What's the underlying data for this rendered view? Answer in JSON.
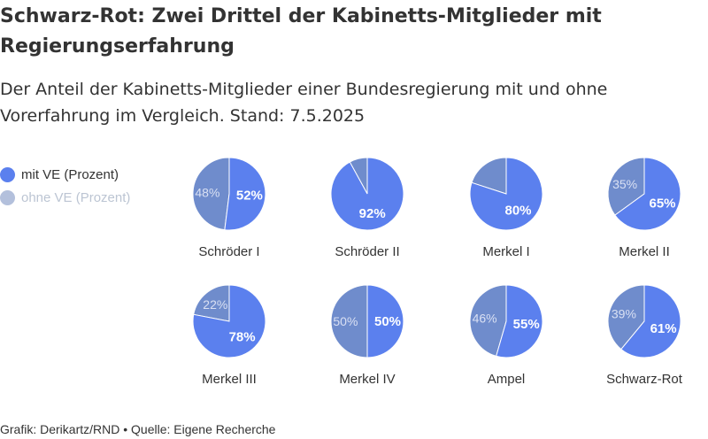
{
  "header": {
    "title": "Schwarz-Rot: Zwei Drittel der Kabinetts-Mitglieder mit Regierungserfahrung",
    "subtitle": "Der Anteil der Kabinetts-Mitglieder einer Bundesregierung mit und ohne Vorerfahrung im Vergleich. Stand: 7.5.2025"
  },
  "legend": {
    "items": [
      {
        "label": "mit VE (Prozent)",
        "color": "#5b80ee"
      },
      {
        "label": "ohne VE (Prozent)",
        "color": "#6f8ccc"
      }
    ]
  },
  "footer": {
    "text": "Grafik: Derikartz/RND • Quelle: Eigene Recherche"
  },
  "colors": {
    "mit_ve": "#5b80ee",
    "ohne_ve": "#6f8ccc",
    "legend_ohne_text": "#bcc5d3"
  },
  "chart_data": {
    "type": "pie",
    "title": "Schwarz-Rot: Zwei Drittel der Kabinetts-Mitglieder mit Regierungserfahrung",
    "series_names": [
      "mit VE (Prozent)",
      "ohne VE (Prozent)"
    ],
    "pies": [
      {
        "name": "Schröder I",
        "mit_ve": 52,
        "ohne_ve": 48,
        "mit_label": "52%",
        "ohne_label": "48%"
      },
      {
        "name": "Schröder II",
        "mit_ve": 92,
        "ohne_ve": 8,
        "mit_label": "92%",
        "ohne_label": ""
      },
      {
        "name": "Merkel I",
        "mit_ve": 80,
        "ohne_ve": 20,
        "mit_label": "80%",
        "ohne_label": ""
      },
      {
        "name": "Merkel II",
        "mit_ve": 65,
        "ohne_ve": 35,
        "mit_label": "65%",
        "ohne_label": "35%"
      },
      {
        "name": "Merkel III",
        "mit_ve": 78,
        "ohne_ve": 22,
        "mit_label": "78%",
        "ohne_label": "22%"
      },
      {
        "name": "Merkel IV",
        "mit_ve": 50,
        "ohne_ve": 50,
        "mit_label": "50%",
        "ohne_label": "50%"
      },
      {
        "name": "Ampel",
        "mit_ve": 55,
        "ohne_ve": 46,
        "mit_label": "55%",
        "ohne_label": "46%"
      },
      {
        "name": "Schwarz-Rot",
        "mit_ve": 61,
        "ohne_ve": 39,
        "mit_label": "61%",
        "ohne_label": "39%"
      }
    ]
  }
}
